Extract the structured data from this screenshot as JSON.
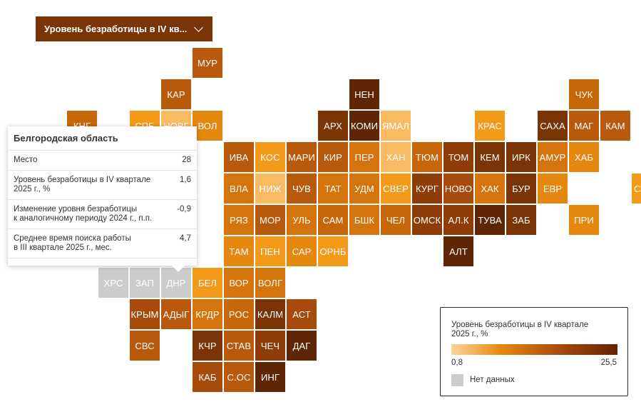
{
  "selector": {
    "label": "Уровень безработицы в IV кв...",
    "icon": "chevron-down-icon"
  },
  "colors": {
    "scale": [
      "#f8bb62",
      "#f39a1a",
      "#e6870f",
      "#d5740c",
      "#c8670a",
      "#b9590b",
      "#a64b0c",
      "#8f3d08",
      "#7a3405",
      "#5e2604"
    ],
    "no_data": "#cccccc",
    "scale_min_color": "#fcd69c",
    "scale_max_color": "#652300"
  },
  "regions": [
    {
      "code": "МУР",
      "row": 0,
      "col": 5,
      "level": 5
    },
    {
      "code": "КАР",
      "row": 1,
      "col": 4,
      "level": 5
    },
    {
      "code": "НЕН",
      "row": 1,
      "col": 10,
      "level": 9
    },
    {
      "code": "ЧУК",
      "row": 1,
      "col": 17,
      "level": 4
    },
    {
      "code": "КНГ",
      "row": 2,
      "col": 1,
      "level": 4
    },
    {
      "code": "СПБ",
      "row": 2,
      "col": 3,
      "level": 1
    },
    {
      "code": "НОВГ",
      "row": 2,
      "col": 4,
      "level": 0
    },
    {
      "code": "ВОЛ",
      "row": 2,
      "col": 5,
      "level": 2
    },
    {
      "code": "АРХ",
      "row": 2,
      "col": 9,
      "level": 8
    },
    {
      "code": "КОМИ",
      "row": 2,
      "col": 10,
      "level": 9
    },
    {
      "code": "ЯМАЛ",
      "row": 2,
      "col": 11,
      "level": 0
    },
    {
      "code": "КРАС",
      "row": 2,
      "col": 14,
      "level": 1
    },
    {
      "code": "САХА",
      "row": 2,
      "col": 16,
      "level": 8
    },
    {
      "code": "МАГ",
      "row": 2,
      "col": 17,
      "level": 5
    },
    {
      "code": "КАМ",
      "row": 2,
      "col": 18,
      "level": 5
    },
    {
      "code": "ИВА",
      "row": 3,
      "col": 6,
      "level": 5
    },
    {
      "code": "КОС",
      "row": 3,
      "col": 7,
      "level": 1
    },
    {
      "code": "МАРИ",
      "row": 3,
      "col": 8,
      "level": 5
    },
    {
      "code": "КИР",
      "row": 3,
      "col": 9,
      "level": 5
    },
    {
      "code": "ПЕР",
      "row": 3,
      "col": 10,
      "level": 3
    },
    {
      "code": "ХАН",
      "row": 3,
      "col": 11,
      "level": 0
    },
    {
      "code": "ТЮМ",
      "row": 3,
      "col": 12,
      "level": 4
    },
    {
      "code": "ТОМ",
      "row": 3,
      "col": 13,
      "level": 7
    },
    {
      "code": "КЕМ",
      "row": 3,
      "col": 14,
      "level": 8
    },
    {
      "code": "ИРК",
      "row": 3,
      "col": 15,
      "level": 8
    },
    {
      "code": "АМУР",
      "row": 3,
      "col": 16,
      "level": 3
    },
    {
      "code": "ХАБ",
      "row": 3,
      "col": 17,
      "level": 2
    },
    {
      "code": "ВЛА",
      "row": 4,
      "col": 6,
      "level": 3
    },
    {
      "code": "НИЖ",
      "row": 4,
      "col": 7,
      "level": 0
    },
    {
      "code": "ЧУВ",
      "row": 4,
      "col": 8,
      "level": 5
    },
    {
      "code": "ТАТ",
      "row": 4,
      "col": 9,
      "level": 3
    },
    {
      "code": "УДМ",
      "row": 4,
      "col": 10,
      "level": 3
    },
    {
      "code": "СВЕР",
      "row": 4,
      "col": 11,
      "level": 1
    },
    {
      "code": "КУРГ",
      "row": 4,
      "col": 12,
      "level": 7
    },
    {
      "code": "НОВО",
      "row": 4,
      "col": 13,
      "level": 6
    },
    {
      "code": "ХАК",
      "row": 4,
      "col": 14,
      "level": 3
    },
    {
      "code": "БУР",
      "row": 4,
      "col": 15,
      "level": 8
    },
    {
      "code": "ЕВР",
      "row": 4,
      "col": 16,
      "level": 2
    },
    {
      "code": "СХЛН",
      "row": 4,
      "col": 19,
      "level": 1
    },
    {
      "code": "РЯЗ",
      "row": 5,
      "col": 6,
      "level": 3
    },
    {
      "code": "МОР",
      "row": 5,
      "col": 7,
      "level": 5
    },
    {
      "code": "УЛЬ",
      "row": 5,
      "col": 8,
      "level": 3
    },
    {
      "code": "САМ",
      "row": 5,
      "col": 9,
      "level": 4
    },
    {
      "code": "БШК",
      "row": 5,
      "col": 10,
      "level": 3
    },
    {
      "code": "ЧЕЛ",
      "row": 5,
      "col": 11,
      "level": 4
    },
    {
      "code": "ОМСК",
      "row": 5,
      "col": 12,
      "level": 7
    },
    {
      "code": "АЛ.К",
      "row": 5,
      "col": 13,
      "level": 7
    },
    {
      "code": "ТУВА",
      "row": 5,
      "col": 14,
      "level": 9
    },
    {
      "code": "ЗАБ",
      "row": 5,
      "col": 15,
      "level": 8
    },
    {
      "code": "ПРИ",
      "row": 5,
      "col": 17,
      "level": 2
    },
    {
      "code": "ТАМ",
      "row": 6,
      "col": 6,
      "level": 2
    },
    {
      "code": "ПЕН",
      "row": 6,
      "col": 7,
      "level": 1
    },
    {
      "code": "САР",
      "row": 6,
      "col": 8,
      "level": 2
    },
    {
      "code": "ОРНБ",
      "row": 6,
      "col": 9,
      "level": 1
    },
    {
      "code": "АЛТ",
      "row": 6,
      "col": 13,
      "level": 9
    },
    {
      "code": "ХРС",
      "row": 7,
      "col": 2,
      "level": -1
    },
    {
      "code": "ЗАП",
      "row": 7,
      "col": 3,
      "level": -1
    },
    {
      "code": "ДНР",
      "row": 7,
      "col": 4,
      "level": -1
    },
    {
      "code": "БЕЛ",
      "row": 7,
      "col": 5,
      "level": 1
    },
    {
      "code": "ВОР",
      "row": 7,
      "col": 6,
      "level": 3
    },
    {
      "code": "ВОЛГ",
      "row": 7,
      "col": 7,
      "level": 3
    },
    {
      "code": "КРЫМ",
      "row": 8,
      "col": 3,
      "level": 6
    },
    {
      "code": "АДЫГ",
      "row": 8,
      "col": 4,
      "level": 5
    },
    {
      "code": "КРДР",
      "row": 8,
      "col": 5,
      "level": 3
    },
    {
      "code": "РОС",
      "row": 8,
      "col": 6,
      "level": 4
    },
    {
      "code": "КАЛМ",
      "row": 8,
      "col": 7,
      "level": 8
    },
    {
      "code": "АСТ",
      "row": 8,
      "col": 8,
      "level": 6
    },
    {
      "code": "СВС",
      "row": 9,
      "col": 3,
      "level": 5
    },
    {
      "code": "КЧР",
      "row": 9,
      "col": 5,
      "level": 8
    },
    {
      "code": "СТАВ",
      "row": 9,
      "col": 6,
      "level": 5
    },
    {
      "code": "ЧЕЧ",
      "row": 9,
      "col": 7,
      "level": 7
    },
    {
      "code": "ДАГ",
      "row": 9,
      "col": 8,
      "level": 9
    },
    {
      "code": "КАБ",
      "row": 10,
      "col": 5,
      "level": 6
    },
    {
      "code": "С.ОС",
      "row": 10,
      "col": 6,
      "level": 5
    },
    {
      "code": "ИНГ",
      "row": 10,
      "col": 7,
      "level": 9
    }
  ],
  "tooltip": {
    "title": "Белгородская область",
    "rows": [
      {
        "label": "Место",
        "value": "28"
      },
      {
        "label": "Уровень безработицы в IV квартале\n2025 г., %",
        "value": "1,6"
      },
      {
        "label": "Изменение уровня безработицы\nк аналогичному периоду 2024 г., п.п.",
        "value": "-0,9"
      },
      {
        "label": "Среднее время поиска работы\nв III квартале 2025 г., мес.",
        "value": "4,7"
      }
    ]
  },
  "legend": {
    "title": "Уровень безработицы в IV квартале\n2025 г., %",
    "min": "0,8",
    "max": "25,5",
    "no_data": "Нет данных"
  }
}
